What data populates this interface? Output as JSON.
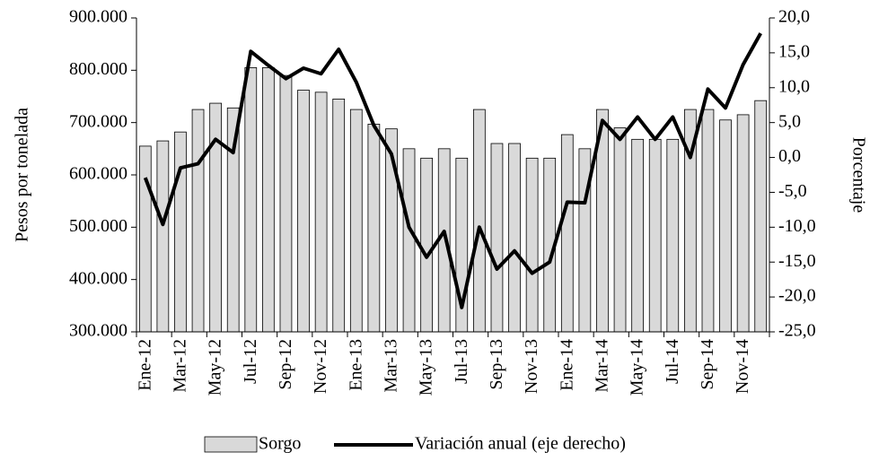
{
  "chart_data": {
    "type": "bar",
    "categories": [
      "Ene-12",
      null,
      "Mar-12",
      null,
      "May-12",
      null,
      "Jul-12",
      null,
      "Sep-12",
      null,
      "Nov-12",
      null,
      "Ene-13",
      null,
      "Mar-13",
      null,
      "May-13",
      null,
      "Jul-13",
      null,
      "Sep-13",
      null,
      "Nov-13",
      null,
      "Ene-14",
      null,
      "Mar-14",
      null,
      "May-14",
      null,
      "Jul-14",
      null,
      "Sep-14",
      null,
      "Nov-14",
      null
    ],
    "y_label": "Pesos por tonelada",
    "y2_label": "Porcentaje",
    "ylim": [
      300000,
      900000
    ],
    "yticks": [
      {
        "value": 300000,
        "label": "300.000"
      },
      {
        "value": 400000,
        "label": "400.000"
      },
      {
        "value": 500000,
        "label": "500.000"
      },
      {
        "value": 600000,
        "label": "600.000"
      },
      {
        "value": 700000,
        "label": "700.000"
      },
      {
        "value": 800000,
        "label": "800.000"
      },
      {
        "value": 900000,
        "label": "900.000"
      }
    ],
    "y2lim": [
      -25,
      20
    ],
    "y2ticks": [
      {
        "value": -25,
        "label": "-25,0"
      },
      {
        "value": -20,
        "label": "-20,0"
      },
      {
        "value": -15,
        "label": "-15,0"
      },
      {
        "value": -10,
        "label": "-10,0"
      },
      {
        "value": -5,
        "label": "-5,0"
      },
      {
        "value": 0,
        "label": "0,0"
      },
      {
        "value": 5,
        "label": "5,0"
      },
      {
        "value": 10,
        "label": "10,0"
      },
      {
        "value": 15,
        "label": "15,0"
      },
      {
        "value": 20,
        "label": "20,0"
      }
    ],
    "series": [
      {
        "name": "Sorgo",
        "type": "bar",
        "color": "#d9d9d9",
        "values": [
          655000,
          665000,
          682000,
          725000,
          737000,
          728000,
          805000,
          805000,
          790000,
          762000,
          758000,
          745000,
          725000,
          697000,
          688000,
          650000,
          632000,
          650000,
          632000,
          725000,
          660000,
          660000,
          632000,
          632000,
          677000,
          650000,
          725000,
          690000,
          668000,
          668000,
          668000,
          725000,
          725000,
          705000,
          715000,
          742000
        ]
      },
      {
        "name": "Variación anual (eje derecho)",
        "type": "line",
        "axis": "y2",
        "color": "#000000",
        "values": [
          -2.9,
          -9.6,
          -1.5,
          -0.9,
          2.6,
          0.7,
          15.2,
          13.2,
          11.3,
          12.8,
          12.0,
          15.5,
          10.8,
          4.6,
          0.5,
          -10.0,
          -14.3,
          -10.6,
          -21.5,
          -10.0,
          -16.0,
          -13.4,
          -16.6,
          -15.0,
          -6.4,
          -6.5,
          5.3,
          2.6,
          5.8,
          2.6,
          5.8,
          0.0,
          9.8,
          7.1,
          13.3,
          17.8
        ]
      }
    ],
    "legend": "bottom"
  }
}
